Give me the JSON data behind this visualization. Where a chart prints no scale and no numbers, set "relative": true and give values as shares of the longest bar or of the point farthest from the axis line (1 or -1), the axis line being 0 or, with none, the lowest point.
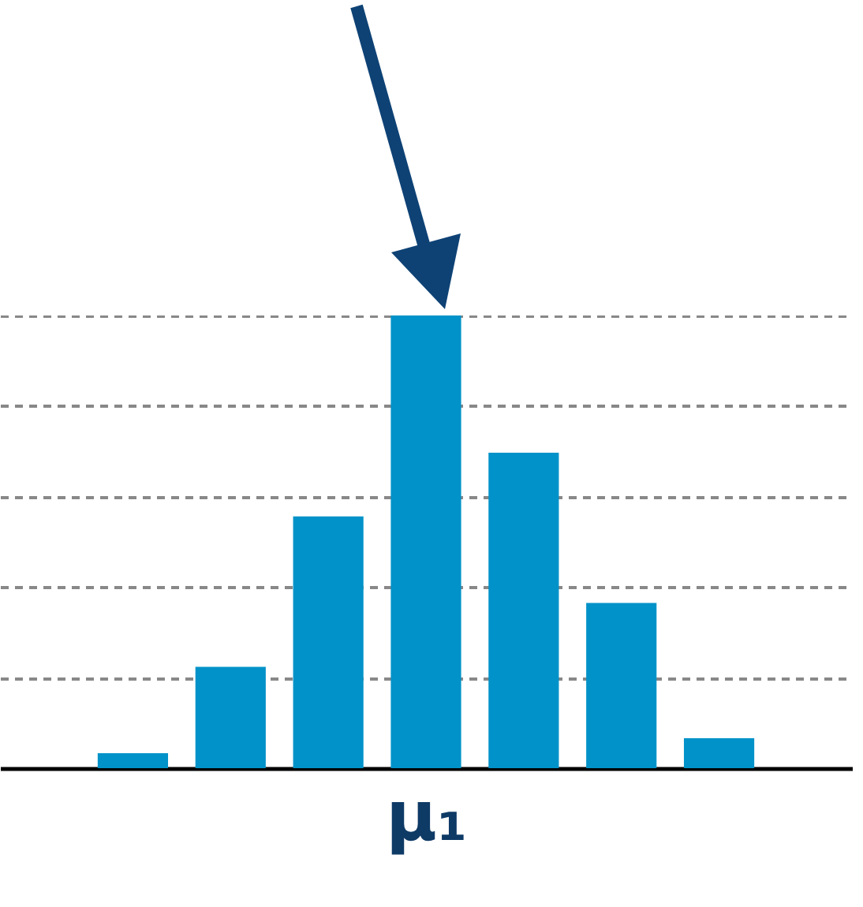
{
  "chart_data": {
    "type": "bar",
    "relative": true,
    "xlabel": "μ₁",
    "categories": [
      null,
      null,
      null,
      null,
      null,
      null,
      null
    ],
    "values": [
      0.033,
      0.224,
      0.556,
      1,
      0.697,
      0.365,
      0.066
    ],
    "color": "#0092c8",
    "grid": "y"
  }
}
